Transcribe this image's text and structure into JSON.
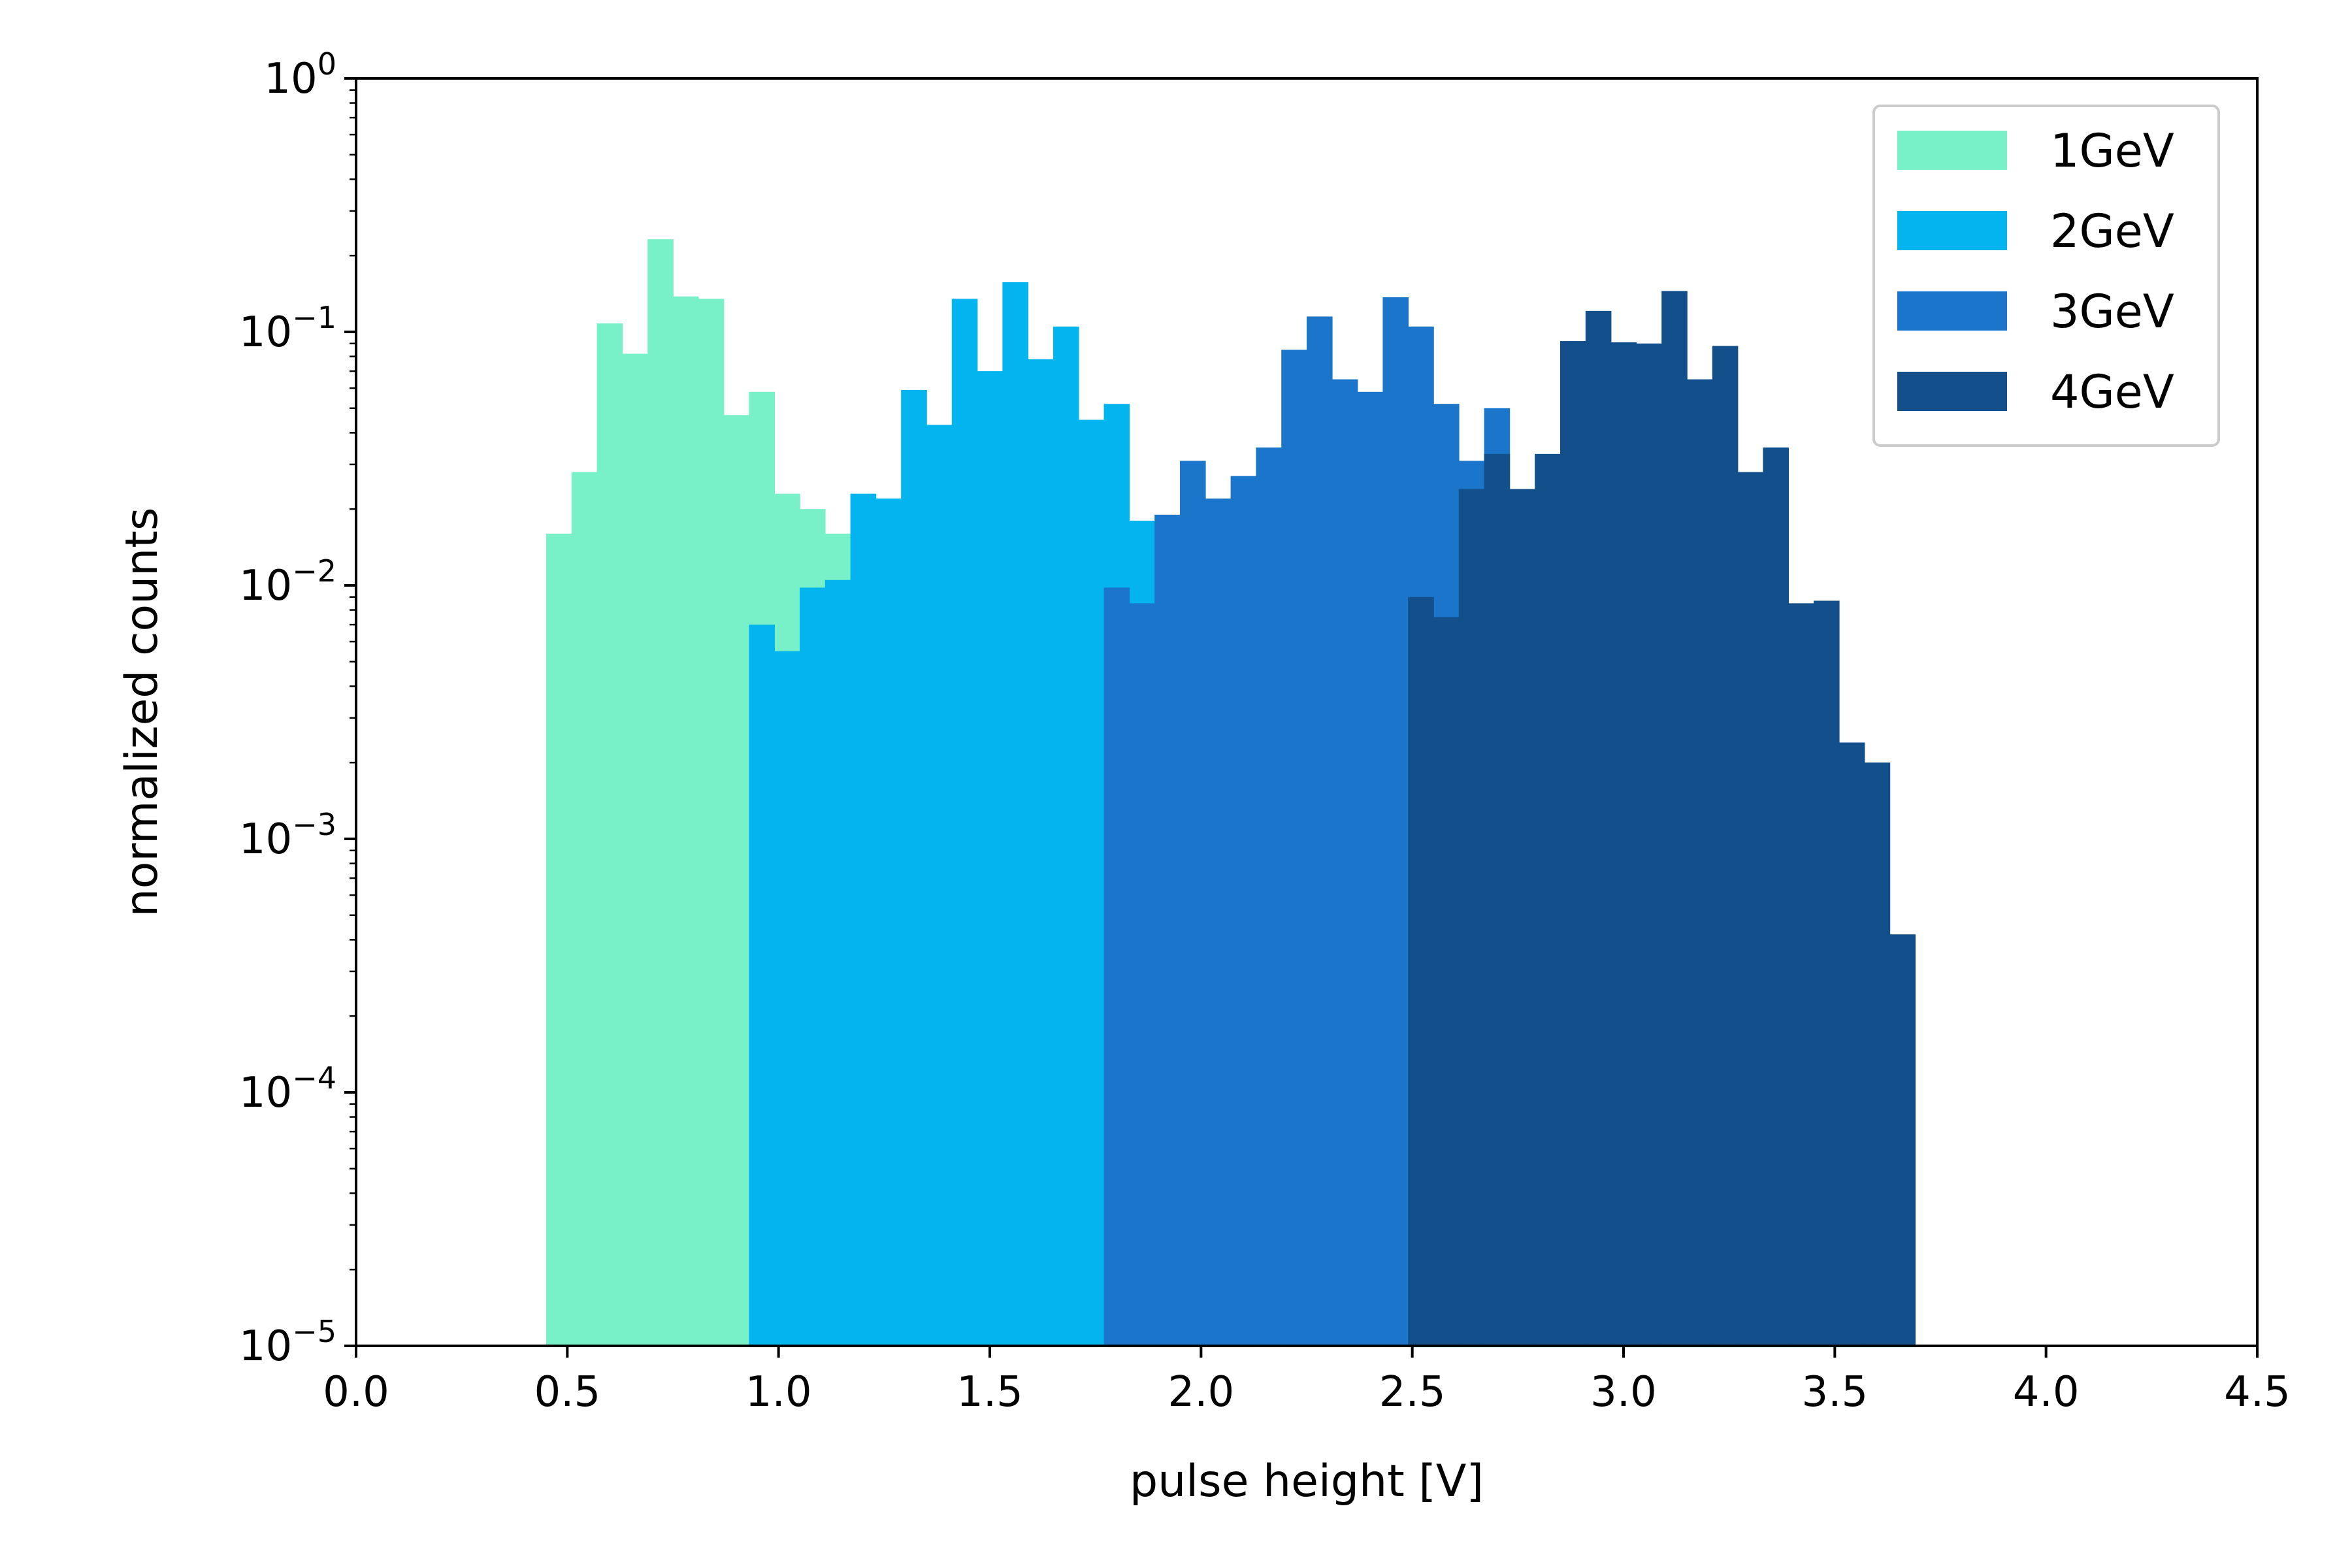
{
  "chart_data": {
    "type": "histogram",
    "title": "",
    "xlabel": "pulse height [V]",
    "ylabel": "normalized counts",
    "xlim": [
      0,
      4.5
    ],
    "ylim": [
      1e-05,
      1
    ],
    "yscale": "log",
    "grid": false,
    "legend_placement": "top-right",
    "bin_width": 0.06,
    "x_ticks": [
      "0.0",
      "0.5",
      "1.0",
      "1.5",
      "2.0",
      "2.5",
      "3.0",
      "3.5",
      "4.0",
      "4.5"
    ],
    "y_ticks": [
      {
        "base": "10",
        "exp": "−5"
      },
      {
        "base": "10",
        "exp": "−4"
      },
      {
        "base": "10",
        "exp": "−3"
      },
      {
        "base": "10",
        "exp": "−2"
      },
      {
        "base": "10",
        "exp": "−1"
      },
      {
        "base": "10",
        "exp": "0"
      }
    ],
    "series": [
      {
        "name": "1GeV",
        "color": "#78f0c8",
        "start": 0.45,
        "values": [
          0.016,
          0.028,
          0.108,
          0.082,
          0.232,
          0.138,
          0.135,
          0.047,
          0.058,
          0.023,
          0.02,
          0.016
        ]
      },
      {
        "name": "2GeV",
        "color": "#04b4ee",
        "start": 0.93,
        "values": [
          0.007,
          0.0055,
          0.0098,
          0.0105,
          0.023,
          0.022,
          0.059,
          0.043,
          0.135,
          0.07,
          0.157,
          0.078,
          0.105,
          0.045,
          0.052,
          0.018,
          0.0068,
          0.021
        ]
      },
      {
        "name": "3GeV",
        "color": "#1b75cb",
        "start": 1.77,
        "values": [
          0.0098,
          0.0085,
          0.019,
          0.031,
          0.022,
          0.027,
          0.035,
          0.085,
          0.115,
          0.065,
          0.058,
          0.137,
          0.105,
          0.052,
          0.031,
          0.05
        ]
      },
      {
        "name": "4GeV",
        "color": "#124f8b",
        "start": 2.49,
        "values": [
          0.009,
          0.0075,
          0.024,
          0.033,
          0.024,
          0.033,
          0.092,
          0.121,
          0.091,
          0.09,
          0.145,
          0.065,
          0.088,
          0.028,
          0.035,
          0.0085,
          0.0087,
          0.0024,
          0.002,
          0.00042
        ]
      }
    ]
  }
}
